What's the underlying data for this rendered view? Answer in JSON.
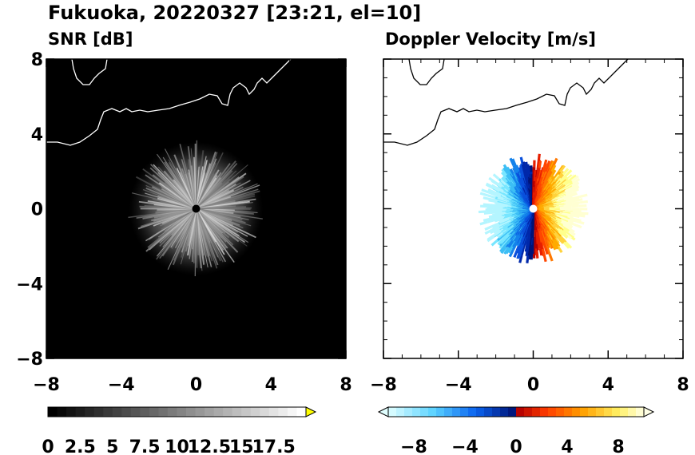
{
  "title": "Fukuoka, 20220327 [23:21, el=10]",
  "chart_data": [
    {
      "type": "heatmap",
      "panel_title": "SNR [dB]",
      "xlim": [
        -8,
        8
      ],
      "ylim": [
        -8,
        8
      ],
      "xticks": [
        "−8",
        "−4",
        "0",
        "4",
        "8"
      ],
      "yticks": [
        "8",
        "4",
        "0",
        "−4",
        "−8"
      ],
      "background_color": "#000000",
      "radar_site": [
        0,
        0
      ],
      "echo_extent_km": 3.5,
      "colorbar": {
        "levels": [
          0,
          2.5,
          5,
          7.5,
          10,
          12.5,
          15,
          17.5
        ],
        "labels": [
          "0",
          "2.5",
          "5",
          "7.5",
          "10",
          "12.5",
          "15",
          "17.5"
        ],
        "colors": [
          "#000000",
          "#ffffff"
        ],
        "extend": "max",
        "over_color": "#ffff00"
      }
    },
    {
      "type": "heatmap",
      "panel_title": "Doppler Velocity [m/s]",
      "xlim": [
        -8,
        8
      ],
      "ylim": [
        -8,
        8
      ],
      "xticks": [
        "−8",
        "−4",
        "0",
        "4",
        "8"
      ],
      "yticks": [],
      "background_color": "#ffffff",
      "radar_site": [
        0,
        0
      ],
      "echo_extent_km": 2.6,
      "colorbar": {
        "levels": [
          -8,
          -4,
          0,
          4,
          8
        ],
        "labels": [
          "−8",
          "−4",
          "0",
          "4",
          "8"
        ],
        "colors": [
          "#e8ffff",
          "#5ad2ff",
          "#0a50e6",
          "#000064",
          "#960000",
          "#ff2800",
          "#ffa000",
          "#ffff64",
          "#ffffe6"
        ],
        "extend": "both"
      }
    }
  ]
}
